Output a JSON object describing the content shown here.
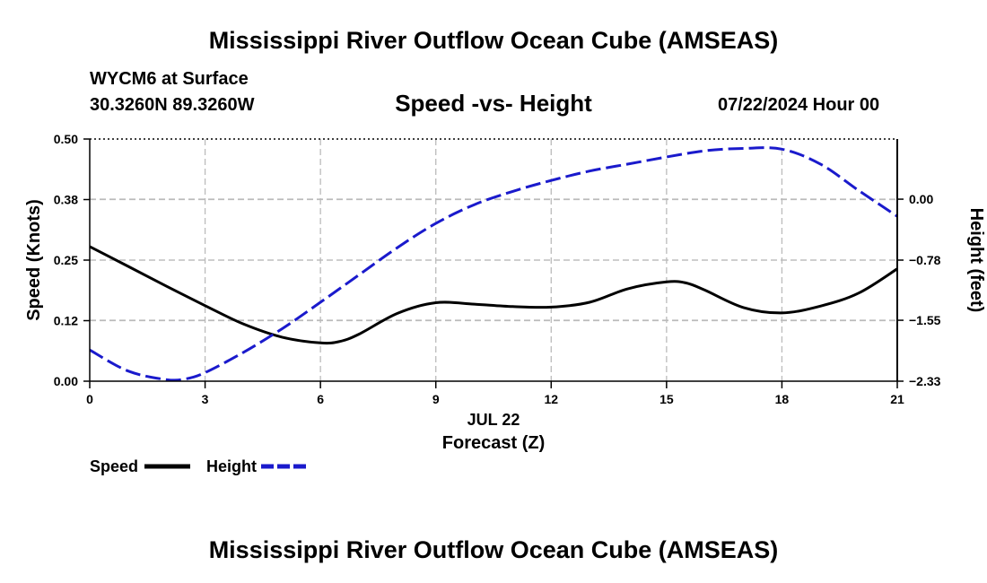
{
  "header": {
    "title": "Mississippi River Outflow Ocean Cube (AMSEAS)",
    "station": "WYCM6 at Surface",
    "coords": "30.3260N  89.3260W",
    "subtitle": "Speed -vs- Height",
    "datetime": "07/22/2024 Hour 00"
  },
  "footer": {
    "title": "Mississippi River Outflow Ocean Cube (AMSEAS)"
  },
  "chart_data": {
    "type": "line",
    "title": "Speed -vs- Height",
    "xlabel": "Forecast (Z)",
    "xlabel_date": "JUL 22",
    "ylabel": "Speed (Knots)",
    "y2label": "Height (feet)",
    "xlim": [
      0,
      21
    ],
    "ylim": [
      0,
      0.5
    ],
    "y2lim": [
      -2.33,
      0.77
    ],
    "x_ticks": [
      0,
      3,
      6,
      9,
      12,
      15,
      18,
      21
    ],
    "x_tick_labels": [
      "0",
      "3",
      "6",
      "9",
      "12",
      "15",
      "18",
      "21"
    ],
    "y_ticks": [
      0,
      0.125,
      0.25,
      0.375,
      0.5
    ],
    "y_tick_labels": [
      "0.00",
      "0.12",
      "0.25",
      "0.38",
      "0.50"
    ],
    "y2_ticks": [
      -2.33,
      -1.55,
      -0.78,
      0.0
    ],
    "y2_tick_labels": [
      "−2.33",
      "−1.55",
      "−0.78",
      "0.00"
    ],
    "grid": true,
    "legend": [
      {
        "name": "Speed",
        "color": "#000000",
        "dash": "solid"
      },
      {
        "name": "Height",
        "color": "#1a1acc",
        "dash": "dashed"
      }
    ],
    "series": [
      {
        "name": "Speed",
        "axis": "left",
        "color": "#000000",
        "x": [
          0,
          1,
          2,
          3,
          4,
          5,
          6,
          6.5,
          7,
          8,
          9,
          10,
          11,
          12,
          13,
          14,
          15,
          15.5,
          16,
          17,
          18,
          19,
          20,
          21
        ],
        "values": [
          0.278,
          0.237,
          0.196,
          0.156,
          0.118,
          0.091,
          0.079,
          0.082,
          0.097,
          0.14,
          0.162,
          0.159,
          0.154,
          0.153,
          0.163,
          0.191,
          0.205,
          0.203,
          0.188,
          0.152,
          0.141,
          0.155,
          0.182,
          0.232
        ]
      },
      {
        "name": "Height",
        "axis": "right",
        "color": "#1a1acc",
        "x": [
          0,
          1,
          2,
          2.5,
          3,
          4,
          5,
          6,
          7,
          8,
          9,
          10,
          11,
          12,
          13,
          14,
          15,
          16,
          17,
          18,
          19,
          20,
          21
        ],
        "values": [
          -1.93,
          -2.2,
          -2.31,
          -2.3,
          -2.22,
          -1.96,
          -1.66,
          -1.32,
          -0.97,
          -0.62,
          -0.31,
          -0.07,
          0.1,
          0.24,
          0.36,
          0.45,
          0.54,
          0.62,
          0.65,
          0.64,
          0.45,
          0.11,
          -0.22
        ]
      }
    ]
  }
}
